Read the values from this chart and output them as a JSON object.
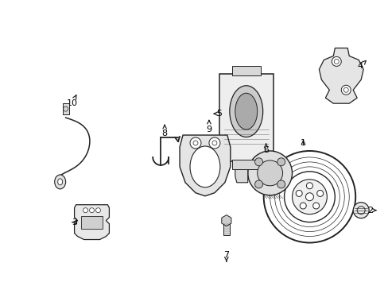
{
  "bg_color": "#ffffff",
  "line_color": "#222222",
  "label_color": "#000000",
  "figsize": [
    4.89,
    3.6
  ],
  "dpi": 100
}
